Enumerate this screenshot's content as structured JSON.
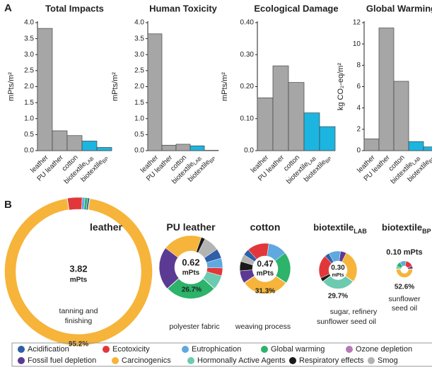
{
  "panel_labels": [
    "A",
    "B"
  ],
  "legend": [
    {
      "name": "Acidification",
      "color": "#2e5fa8"
    },
    {
      "name": "Ecotoxicity",
      "color": "#e2373a"
    },
    {
      "name": "Eutrophication",
      "color": "#5fa8e0"
    },
    {
      "name": "Global warming",
      "color": "#2db36a"
    },
    {
      "name": "Ozone depletion",
      "color": "#b57ab8"
    },
    {
      "name": "Fossil fuel depletion",
      "color": "#5b3a93"
    },
    {
      "name": "Carcinogenics",
      "color": "#f6b43a"
    },
    {
      "name": "Hormonally Active Agents",
      "color": "#6ccab0"
    },
    {
      "name": "Respiratory effects",
      "color": "#1a1a1a"
    },
    {
      "name": "Smog",
      "color": "#b3b3b3"
    }
  ],
  "chart_data": [
    {
      "type": "bar",
      "title": "Total Impacts",
      "y_label": "mPts/m²",
      "categories": [
        "leather",
        "PU leather",
        "cotton",
        "biotextile",
        "biotextile"
      ],
      "category_subscripts": [
        null,
        null,
        null,
        "LAB",
        "BP"
      ],
      "values": [
        3.82,
        0.62,
        0.47,
        0.3,
        0.1
      ],
      "colors": [
        "#a6a6a6",
        "#a6a6a6",
        "#a6a6a6",
        "#1cb5e0",
        "#1cb5e0"
      ],
      "ylim": [
        0,
        4
      ],
      "yticks": [
        {
          "value": 0,
          "label": "0.0"
        },
        0.5,
        {
          "value": 1,
          "label": "1.0"
        },
        1.5,
        {
          "value": 2,
          "label": "2.0"
        },
        2.5,
        {
          "value": 3,
          "label": "3.0"
        },
        3.5,
        {
          "value": 4,
          "label": "4.0"
        }
      ]
    },
    {
      "type": "bar",
      "title": "Human Toxicity",
      "y_label": "mPts/m²",
      "categories": [
        "leather",
        "PU leather",
        "cotton",
        "biotextile",
        "biotextile"
      ],
      "category_subscripts": [
        null,
        null,
        null,
        "LAB",
        "BP"
      ],
      "values": [
        3.65,
        0.17,
        0.2,
        0.15,
        0.01
      ],
      "colors": [
        "#a6a6a6",
        "#a6a6a6",
        "#a6a6a6",
        "#1cb5e0",
        "#1cb5e0"
      ],
      "ylim": [
        0,
        4
      ],
      "yticks": [
        {
          "value": 0,
          "label": "0.0"
        },
        0.5,
        {
          "value": 1,
          "label": "1.0"
        },
        1.5,
        {
          "value": 2,
          "label": "2.0"
        },
        2.5,
        {
          "value": 3,
          "label": "3.0"
        },
        3.5,
        {
          "value": 4,
          "label": "4.0"
        }
      ]
    },
    {
      "type": "bar",
      "title": "Ecological Damage",
      "y_label": "mPts/m²",
      "categories": [
        "leather",
        "PU leather",
        "cotton",
        "biotextile",
        "biotextile"
      ],
      "category_subscripts": [
        null,
        null,
        null,
        "LAB",
        "BP"
      ],
      "values": [
        0.165,
        0.265,
        0.213,
        0.118,
        0.075
      ],
      "colors": [
        "#a6a6a6",
        "#a6a6a6",
        "#a6a6a6",
        "#1cb5e0",
        "#1cb5e0"
      ],
      "ylim": [
        0,
        0.4
      ],
      "yticks": [
        {
          "value": 0,
          "label": "0.0"
        },
        {
          "value": 0.1,
          "label": "0.10"
        },
        {
          "value": 0.2,
          "label": "0.20"
        },
        {
          "value": 0.3,
          "label": "0.30"
        },
        {
          "value": 0.4,
          "label": "0.40"
        }
      ]
    },
    {
      "type": "bar",
      "title": "Global Warming",
      "y_label": "kg CO₂-eq/m²",
      "categories": [
        "leather",
        "PU leather",
        "cotton",
        "biotextile",
        "biotextile"
      ],
      "category_subscripts": [
        null,
        null,
        null,
        "LAB",
        "BP"
      ],
      "values": [
        1.1,
        11.5,
        6.5,
        0.85,
        0.35
      ],
      "colors": [
        "#a6a6a6",
        "#a6a6a6",
        "#a6a6a6",
        "#1cb5e0",
        "#1cb5e0"
      ],
      "ylim": [
        0,
        12
      ],
      "yticks": [
        0,
        2,
        4,
        6,
        8,
        10,
        12
      ]
    },
    {
      "type": "donut",
      "title": "leather",
      "title_subscript": null,
      "total": 3.82,
      "total_label": "3.82",
      "unit": "mPts",
      "segment_categories": [
        6,
        1,
        2,
        3,
        0
      ],
      "values": [
        95.2,
        3.2,
        0.6,
        0.6,
        0.4
      ],
      "value_labels": [
        "95.2%",
        null,
        null,
        null,
        null
      ],
      "highlight": 0,
      "description": [
        "tanning and",
        "finishing"
      ]
    },
    {
      "type": "donut",
      "title": "PU leather",
      "title_subscript": null,
      "total": 0.62,
      "total_label": "0.62",
      "unit": "mPts",
      "segment_categories": [
        3,
        5,
        6,
        8,
        9,
        0,
        2,
        1,
        7
      ],
      "values": [
        26.7,
        22,
        20,
        2,
        8,
        5,
        5,
        4,
        7.3
      ],
      "value_labels": [
        "26.7%",
        null,
        null,
        null,
        null,
        null,
        null,
        null,
        null
      ],
      "highlight": 0,
      "description": [
        "polyester fabric"
      ]
    },
    {
      "type": "donut",
      "title": "cotton",
      "title_subscript": null,
      "total": 0.47,
      "total_label": "0.47",
      "unit": "mPts",
      "segment_categories": [
        6,
        5,
        8,
        9,
        0,
        1,
        2,
        3
      ],
      "values": [
        31.3,
        8,
        6,
        4.7,
        4,
        14,
        12,
        20
      ],
      "value_labels": [
        "31.3%",
        null,
        null,
        null,
        null,
        null,
        null,
        null
      ],
      "highlight": 0,
      "description": [
        "weaving process"
      ]
    },
    {
      "type": "donut",
      "title": "biotextile",
      "title_subscript": "LAB",
      "total": 0.3,
      "total_label": "0.30",
      "unit": "mPts",
      "segment_categories": [
        7,
        8,
        1,
        0,
        2,
        5,
        6
      ],
      "values": [
        29.7,
        3.3,
        20,
        4,
        10,
        5,
        28
      ],
      "value_labels": [
        "29.7%",
        null,
        null,
        null,
        null,
        null,
        null
      ],
      "highlight": 0,
      "description": [
        "sugar, refinery",
        "sunflower seed oil"
      ]
    },
    {
      "type": "donut",
      "title": "biotextile",
      "title_subscript": "BP",
      "total": 0.1,
      "total_label": "0.10",
      "unit": "mPts",
      "segment_categories": [
        6,
        7,
        3,
        2,
        1,
        5
      ],
      "values": [
        52.6,
        5,
        10,
        12,
        15,
        5.4
      ],
      "value_labels": [
        "52.6%",
        null,
        null,
        null,
        null,
        null
      ],
      "highlight": 0,
      "description": [
        "sunflower",
        "seed oil"
      ]
    }
  ]
}
